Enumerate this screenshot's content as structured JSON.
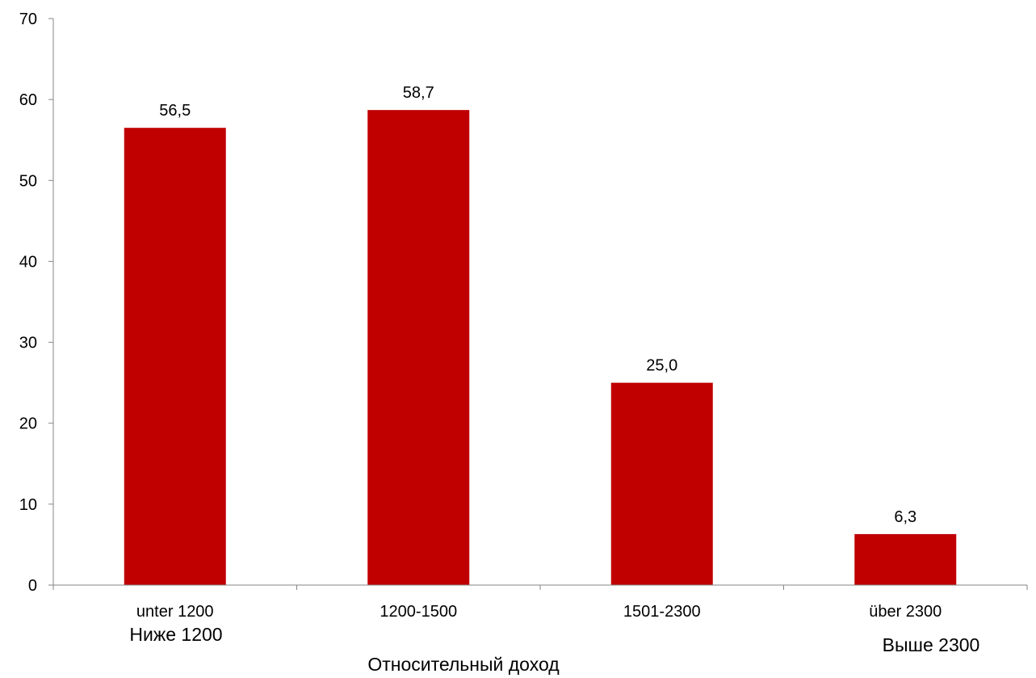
{
  "chart_data": {
    "type": "bar",
    "categories": [
      "unter 1200",
      "1200-1500",
      "1501-2300",
      "über 2300"
    ],
    "category_sublabels": [
      "Ниже 1200",
      "",
      "",
      "Выше 2300"
    ],
    "values": [
      56.5,
      58.7,
      25.0,
      6.3
    ],
    "data_labels": [
      "56,5",
      "58,7",
      "25,0",
      "6,3"
    ],
    "y_ticks": [
      0,
      10,
      20,
      30,
      40,
      50,
      60,
      70
    ],
    "ylim": [
      0,
      70
    ],
    "xlabel": "Относительный доход",
    "ylabel": "",
    "title": "",
    "bar_color": "#c00000",
    "axis_color": "#868686",
    "grid": false,
    "legend": "none"
  }
}
